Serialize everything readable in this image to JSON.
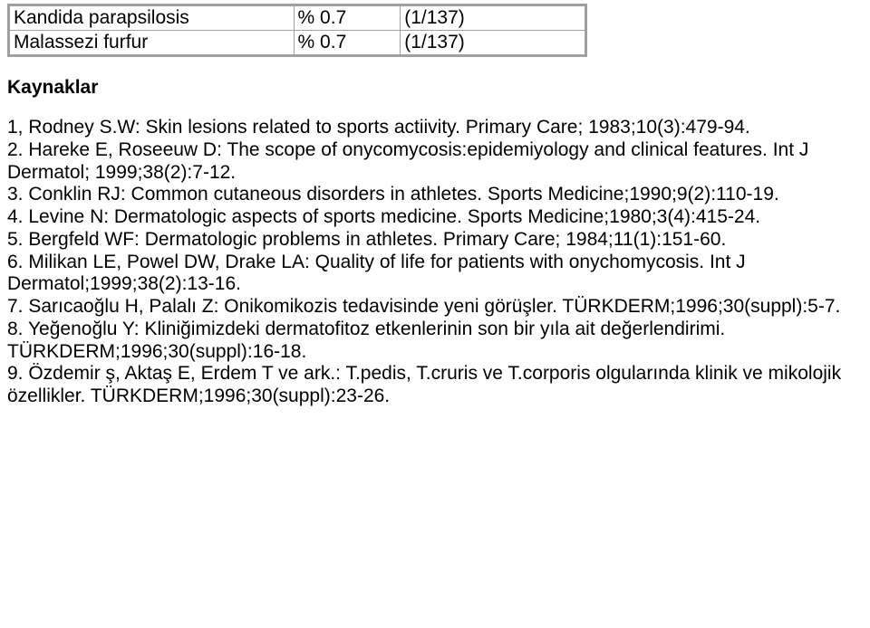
{
  "table": {
    "rows": [
      {
        "name": "Kandida parapsilosis",
        "pct": "% 0.7",
        "frac": "(1/137)"
      },
      {
        "name": "Malassezi furfur",
        "pct": "% 0.7",
        "frac": "(1/137)"
      }
    ]
  },
  "heading": "Kaynaklar",
  "refs": [
    "1, Rodney S.W: Skin lesions related to sports actiivity. Primary Care; 1983;10(3):479-94.",
    "2. Hareke E, Roseeuw D: The scope of onycomycosis:epidemiyology and clinical features. Int J Dermatol; 1999;38(2):7-12.",
    "3. Conklin RJ: Common cutaneous disorders in athletes. Sports Medicine;1990;9(2):110-19.",
    "4. Levine N: Dermatologic aspects of sports medicine. Sports Medicine;1980;3(4):415-24.",
    "5. Bergfeld WF: Dermatologic problems in athletes. Primary Care; 1984;11(1):151-60.",
    "6. Milikan LE, Powel DW, Drake LA: Quality of life for patients with onychomycosis. Int J Dermatol;1999;38(2):13-16.",
    "7. Sarıcaoğlu H, Palalı Z: Onikomikozis tedavisinde yeni görüşler. TÜRKDERM;1996;30(suppl):5-7.",
    "8. Yeğenoğlu Y: Kliniğimizdeki dermatofitoz etkenlerinin son bir yıla ait değerlendirimi. TÜRKDERM;1996;30(suppl):16-18.",
    "9. Özdemir ş, Aktaş E, Erdem T ve ark.: T.pedis, T.cruris ve T.corporis olgularında klinik ve mikolojik özellikler. TÜRKDERM;1996;30(suppl):23-26."
  ]
}
